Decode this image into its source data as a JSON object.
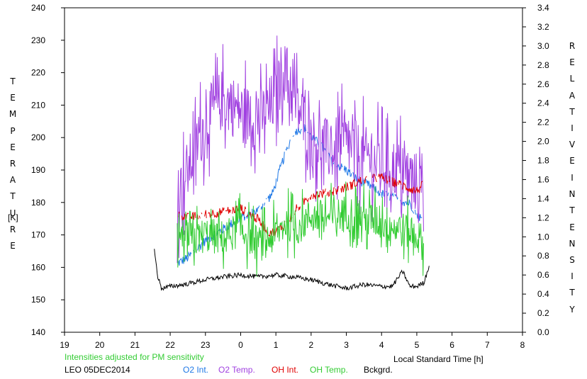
{
  "chart_data": {
    "type": "line",
    "left_axis": {
      "label_letters": [
        "T",
        "E",
        "M",
        "P",
        "E",
        "R",
        "A",
        "T",
        "U",
        "R",
        "E"
      ],
      "unit": "[K]",
      "ylim": [
        140,
        240
      ],
      "ticks": [
        "140",
        "150",
        "160",
        "170",
        "180",
        "190",
        "200",
        "210",
        "220",
        "230",
        "240"
      ]
    },
    "right_axis": {
      "label_word1": [
        "R",
        "E",
        "L",
        "A",
        "T",
        "I",
        "V",
        "E"
      ],
      "label_word2": [
        "I",
        "N",
        "T",
        "E",
        "N",
        "S",
        "I",
        "T",
        "Y"
      ],
      "ylim": [
        0.0,
        3.4
      ],
      "ticks": [
        "0.0",
        "0.2",
        "0.4",
        "0.6",
        "0.8",
        "1.0",
        "1.2",
        "1.4",
        "1.6",
        "1.8",
        "2.0",
        "2.2",
        "2.4",
        "2.6",
        "2.8",
        "3.0",
        "3.2",
        "3.4"
      ]
    },
    "x_axis": {
      "label": "Local Standard Time [h]",
      "ticks": [
        "19",
        "20",
        "21",
        "22",
        "23",
        "0",
        "1",
        "2",
        "3",
        "4",
        "5",
        "6",
        "7",
        "8"
      ]
    },
    "note": "Intensities adjusted for PM sensitivity",
    "station": "LEO 05DEC2014",
    "series": [
      {
        "name": "O2 Int.",
        "axis": "right",
        "color": "#1e78e6",
        "x": [
          22.2,
          22.5,
          23.0,
          23.5,
          24.0,
          24.5,
          24.9,
          25.2,
          25.5,
          25.8,
          26.0,
          26.3,
          26.6,
          27.0,
          27.3,
          27.6,
          28.0,
          28.4,
          28.8,
          29.0,
          29.2
        ],
        "y": [
          0.72,
          0.78,
          0.96,
          1.08,
          1.2,
          1.28,
          1.45,
          1.8,
          2.1,
          2.15,
          2.05,
          1.95,
          1.78,
          1.7,
          1.6,
          1.55,
          1.45,
          1.4,
          1.35,
          1.25,
          1.15
        ]
      },
      {
        "name": "O2 Temp.",
        "axis": "left",
        "color": "#a040e0",
        "x": [
          22.2,
          22.5,
          23.0,
          23.5,
          24.0,
          24.5,
          25.0,
          25.2,
          25.5,
          26.0,
          26.5,
          27.0,
          27.5,
          28.0,
          28.5,
          29.0,
          29.2
        ],
        "y": [
          180,
          190,
          205,
          212,
          208,
          205,
          212,
          222,
          212,
          200,
          196,
          198,
          194,
          192,
          190,
          186,
          183
        ]
      },
      {
        "name": "OH Int.",
        "axis": "right",
        "color": "#e00000",
        "x": [
          22.2,
          22.5,
          23.0,
          23.5,
          24.0,
          24.5,
          24.8,
          25.0,
          25.3,
          25.6,
          26.0,
          26.5,
          27.0,
          27.5,
          28.0,
          28.5,
          29.0,
          29.2
        ],
        "y": [
          1.25,
          1.2,
          1.24,
          1.26,
          1.3,
          1.18,
          1.05,
          1.05,
          1.15,
          1.3,
          1.44,
          1.46,
          1.52,
          1.6,
          1.62,
          1.55,
          1.48,
          1.55
        ]
      },
      {
        "name": "OH Temp.",
        "axis": "left",
        "color": "#33cc33",
        "x": [
          22.2,
          22.5,
          23.0,
          23.5,
          24.0,
          24.5,
          25.0,
          25.3,
          25.6,
          26.0,
          26.5,
          27.0,
          27.5,
          28.0,
          28.5,
          29.0,
          29.2
        ],
        "y": [
          165,
          168,
          170,
          169,
          172,
          167,
          170,
          174,
          172,
          176,
          175,
          177,
          175,
          174,
          172,
          170,
          167
        ]
      },
      {
        "name": "Bckgrd.",
        "axis": "right",
        "color": "#000000",
        "x": [
          21.55,
          21.65,
          21.75,
          22.0,
          22.4,
          23.0,
          23.5,
          24.0,
          24.5,
          25.0,
          25.5,
          26.0,
          26.5,
          27.0,
          27.5,
          28.0,
          28.3,
          28.6,
          28.8,
          29.0,
          29.2,
          29.35
        ],
        "y": [
          0.86,
          0.58,
          0.46,
          0.48,
          0.5,
          0.55,
          0.58,
          0.6,
          0.58,
          0.6,
          0.58,
          0.55,
          0.5,
          0.46,
          0.5,
          0.48,
          0.48,
          0.64,
          0.48,
          0.48,
          0.52,
          0.7
        ]
      }
    ]
  }
}
